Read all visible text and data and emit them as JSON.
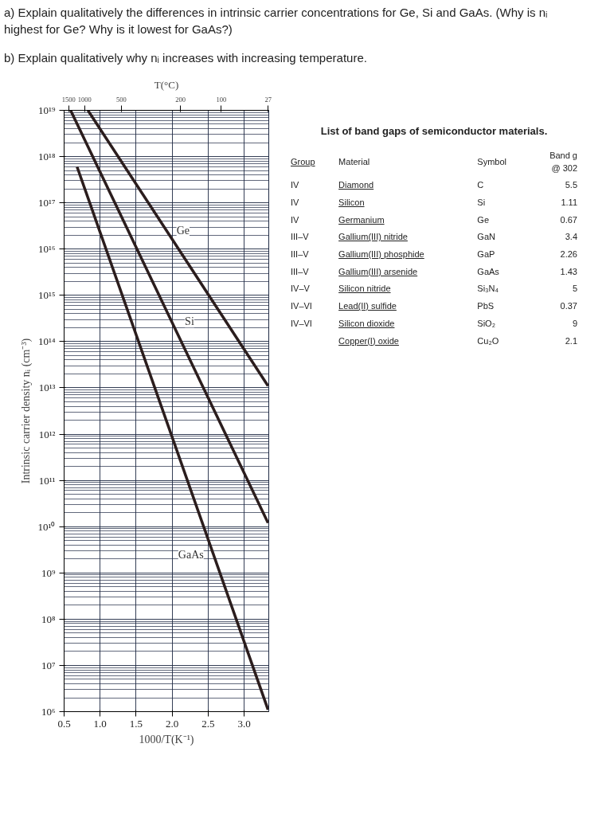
{
  "chart_data": [
    {
      "type": "line",
      "title": "a)    Explain qualitatively the differences in intrinsic carrier concentrations for Ge, Si and GaAs. (Why is nᵢ highest for Ge? Why is it lowest for GaAs?)",
      "subtitle": "b) Explain qualitatively why nᵢ increases with increasing temperature.",
      "xlabel": "1000/T(K⁻¹)",
      "ylabel": "Intrinsic carrier density nᵢ (cm⁻³)",
      "xlim": [
        0.5,
        3.34
      ],
      "xticks": [
        0.5,
        {
          "value": 1,
          "label": "1.0"
        },
        1.5,
        {
          "value": 2,
          "label": "2.0"
        },
        2.5,
        {
          "value": 3,
          "label": "3.0"
        }
      ],
      "ylim": [
        1000000.0,
        1e+19
      ],
      "yticks": [
        {
          "value": 1000000.0,
          "label": "10⁶"
        },
        {
          "value": 10000000.0,
          "label": "10⁷"
        },
        {
          "value": 100000000.0,
          "label": "10⁸"
        },
        {
          "value": 1000000000.0,
          "label": "10⁹"
        },
        {
          "value": 10000000000.0,
          "label": "10¹⁰"
        },
        {
          "value": 100000000000.0,
          "label": "10¹¹"
        },
        {
          "value": 1000000000000.0,
          "label": "10¹²"
        },
        {
          "value": 10000000000000.0,
          "label": "10¹³"
        },
        {
          "value": 100000000000000.0,
          "label": "10¹⁴"
        },
        {
          "value": 1000000000000000.0,
          "label": "10¹⁵"
        },
        {
          "value": 1e+16,
          "label": "10¹⁶"
        },
        {
          "value": 1e+17,
          "label": "10¹⁷"
        },
        {
          "value": 1e+18,
          "label": "10¹⁸"
        },
        {
          "value": 1e+19,
          "label": "10¹⁹"
        }
      ],
      "log": true,
      "grid": true,
      "line_style": "solid",
      "series": [
        {
          "color": "#2b1d1d",
          "x": [
            0.83,
            3.33
          ],
          "values": [
            1e+19,
            11000000000000.0
          ]
        },
        {
          "color": "#2b1d1d",
          "x": [
            0.59,
            3.33
          ],
          "values": [
            1e+19,
            12000000000.0
          ]
        },
        {
          "color": "#2b1d1d",
          "x": [
            0.68,
            3.33
          ],
          "values": [
            6e+17,
            1100000.0
          ]
        }
      ],
      "annotations": [
        "T(°C)",
        "1500",
        "1000",
        "500",
        "200",
        "100",
        "27",
        {
          "text": "Ge",
          "x": 2.15,
          "y": 2.5e+16
        },
        {
          "text": "Si",
          "x": 2.24,
          "y": 270000000000000.0
        },
        {
          "text": "GaAs",
          "x": 2.26,
          "y": 2500000000.0
        }
      ]
    },
    {
      "type": "other",
      "title": "List of band gaps of semiconductor materials.",
      "annotations": [
        "Group",
        "Material",
        "Symbol",
        "Band g",
        "@ 302",
        "IV",
        "Diamond",
        "C",
        "5.5",
        "IV",
        "Silicon",
        "Si",
        "1.11",
        "IV",
        "Germanium",
        "Ge",
        "0.67",
        "III–V",
        "Gallium(III) nitride",
        "GaN",
        "3.4",
        "III–V",
        "Gallium(III) phosphide",
        "GaP",
        "2.26",
        "III–V",
        "Gallium(III) arsenide",
        "GaAs",
        "1.43",
        "IV–V",
        "Silicon nitride",
        "Si₃N₄",
        "5",
        "IV–VI",
        "Lead(II) sulfide",
        "PbS",
        "0.37",
        "IV–VI",
        "Silicon dioxide",
        "SiO₂",
        "9",
        "Copper(I) oxide",
        "Cu₂O",
        "2.1"
      ]
    }
  ]
}
